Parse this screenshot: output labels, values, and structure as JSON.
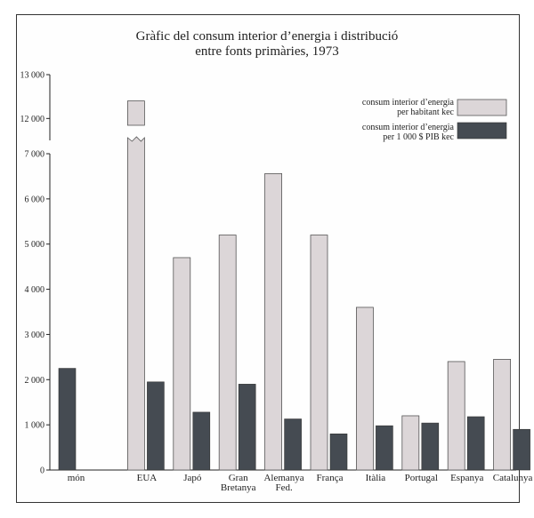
{
  "chart_data": {
    "type": "bar",
    "title": "Gràfic del consum interior d’energia i distribució",
    "subtitle": "entre fonts primàries, 1973",
    "categories": [
      [
        "món"
      ],
      [
        "EUA"
      ],
      [
        "Japó"
      ],
      [
        "Gran",
        "Bretanya"
      ],
      [
        "Alemanya",
        "Fed."
      ],
      [
        "França"
      ],
      [
        "Itàlia"
      ],
      [
        "Portugal"
      ],
      [
        "Espanya"
      ],
      [
        "Catalunya"
      ]
    ],
    "series": [
      {
        "name": "consum interior d’energia per habitant kec",
        "legend_lines": [
          "consum interior d’energia",
          "per habitant kec"
        ],
        "color": "#dcd6d8",
        "values": [
          null,
          12400,
          4700,
          5200,
          6560,
          5200,
          3600,
          1200,
          2400,
          2450
        ]
      },
      {
        "name": "consum interior d’energia per 1 000 $ PIB kec",
        "legend_lines": [
          "consum interior d’energia",
          "per 1 000 $ PIB kec"
        ],
        "color": "#454b52",
        "values": [
          2250,
          1950,
          1280,
          1900,
          1130,
          800,
          980,
          1040,
          1180,
          900
        ]
      }
    ],
    "yticks_lower": [
      {
        "value": 0,
        "label": "0"
      },
      {
        "value": 1000,
        "label": "1 000"
      },
      {
        "value": 2000,
        "label": "2 000"
      },
      {
        "value": 3000,
        "label": "3 000"
      },
      {
        "value": 4000,
        "label": "4 000"
      },
      {
        "value": 5000,
        "label": "5 000"
      },
      {
        "value": 6000,
        "label": "6 000"
      },
      {
        "value": 7000,
        "label": "7 000"
      }
    ],
    "yticks_upper": [
      {
        "value": 12000,
        "label": "12 000"
      },
      {
        "value": 13000,
        "label": "13 000"
      }
    ],
    "ylim_lower": [
      0,
      7000
    ],
    "ylim_upper": [
      11500,
      13000
    ],
    "axis_break": true,
    "legend_position": "top-right",
    "grid": false
  }
}
